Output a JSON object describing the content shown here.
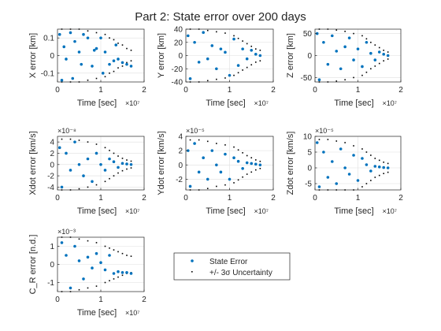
{
  "chart_data": {
    "type": "scatter",
    "title": "Part 2: State error over 200 days",
    "legend": {
      "entries": [
        "State Error",
        "+/- 3σ Uncertainty"
      ],
      "placement": "bottom-center"
    },
    "colors": {
      "state_error": "#0072BD",
      "uncertainty": "#000000",
      "grid": "#DFDFDF",
      "axis": "#262626"
    },
    "subplots": [
      {
        "ylabel": "X error [km]",
        "xlabel": "Time [sec]",
        "x_exponent": "×10⁷",
        "y_exponent": "",
        "xlim": [
          0,
          2
        ],
        "ylim": [
          -0.15,
          0.15
        ],
        "xticks": [
          0,
          1,
          2
        ],
        "xtick_labels": [
          "0",
          "1",
          "2"
        ],
        "yticks": [
          -0.1,
          0,
          0.1
        ],
        "ytick_labels": [
          "-0.1",
          "0",
          "0.1"
        ],
        "series": [
          {
            "name": "State Error",
            "x": [
              0.05,
              0.1,
              0.15,
              0.2,
              0.3,
              0.35,
              0.4,
              0.5,
              0.55,
              0.6,
              0.7,
              0.8,
              0.85,
              0.9,
              1.0,
              1.05,
              1.1,
              1.2,
              1.3,
              1.35,
              1.4,
              1.5,
              1.6,
              1.7
            ],
            "values": [
              0.12,
              -0.14,
              0.05,
              -0.02,
              0.13,
              -0.13,
              0.08,
              0.02,
              -0.05,
              0.12,
              0.1,
              -0.06,
              0.03,
              0.04,
              0.1,
              -0.1,
              0.02,
              -0.05,
              -0.03,
              0.06,
              -0.02,
              -0.04,
              -0.05,
              -0.06
            ]
          },
          {
            "name": "+/- 3σ Uncertainty",
            "x": [
              0.1,
              0.3,
              0.5,
              0.7,
              0.9,
              1.1,
              1.2,
              1.3,
              1.4,
              1.5,
              1.6,
              1.7
            ],
            "values": [
              0.15,
              0.15,
              0.15,
              0.14,
              0.13,
              0.12,
              0.1,
              0.09,
              0.07,
              0.06,
              0.04,
              0.03
            ]
          }
        ]
      },
      {
        "ylabel": "Y error [km]",
        "xlabel": "Time [sec]",
        "x_exponent": "×10⁷",
        "y_exponent": "",
        "xlim": [
          0,
          2
        ],
        "ylim": [
          -40,
          40
        ],
        "xticks": [
          0,
          1,
          2
        ],
        "xtick_labels": [
          "0",
          "1",
          "2"
        ],
        "yticks": [
          -40,
          -20,
          0,
          20,
          40
        ],
        "ytick_labels": [
          "-40",
          "-20",
          "0",
          "20",
          "40"
        ],
        "series": [
          {
            "name": "State Error",
            "x": [
              0.05,
              0.1,
              0.2,
              0.3,
              0.4,
              0.5,
              0.6,
              0.7,
              0.8,
              0.9,
              1.0,
              1.1,
              1.2,
              1.3,
              1.4,
              1.5,
              1.6,
              1.7
            ],
            "values": [
              30,
              -35,
              20,
              -10,
              35,
              -5,
              15,
              -20,
              10,
              5,
              -30,
              25,
              -15,
              10,
              -5,
              8,
              2,
              0
            ]
          },
          {
            "name": "+/- 3σ Uncertainty",
            "x": [
              0.1,
              0.3,
              0.5,
              0.7,
              0.9,
              1.1,
              1.2,
              1.3,
              1.4,
              1.5,
              1.6,
              1.7
            ],
            "values": [
              40,
              40,
              38,
              36,
              34,
              30,
              26,
              22,
              18,
              14,
              10,
              8
            ]
          }
        ]
      },
      {
        "ylabel": "Z error [km]",
        "xlabel": "Time [sec]",
        "x_exponent": "×10⁷",
        "y_exponent": "",
        "xlim": [
          0,
          2
        ],
        "ylim": [
          -60,
          60
        ],
        "xticks": [
          0,
          1,
          2
        ],
        "xtick_labels": [
          "0",
          "1",
          "2"
        ],
        "yticks": [
          -50,
          0,
          50
        ],
        "ytick_labels": [
          "-50",
          "0",
          "50"
        ],
        "series": [
          {
            "name": "State Error",
            "x": [
              0.05,
              0.1,
              0.2,
              0.3,
              0.4,
              0.5,
              0.6,
              0.7,
              0.8,
              0.9,
              1.0,
              1.1,
              1.2,
              1.3,
              1.4,
              1.5,
              1.6,
              1.7
            ],
            "values": [
              50,
              -55,
              30,
              -20,
              45,
              10,
              -30,
              20,
              40,
              -10,
              15,
              -25,
              30,
              5,
              -10,
              8,
              3,
              0
            ]
          },
          {
            "name": "+/- 3σ Uncertainty",
            "x": [
              0.1,
              0.3,
              0.5,
              0.7,
              0.9,
              1.1,
              1.2,
              1.3,
              1.4,
              1.5,
              1.6,
              1.7
            ],
            "values": [
              60,
              60,
              58,
              55,
              50,
              45,
              38,
              30,
              24,
              18,
              12,
              8
            ]
          }
        ]
      },
      {
        "ylabel": "Xdot error [km/s]",
        "xlabel": "Time [sec]",
        "x_exponent": "×10⁷",
        "y_exponent": "×10⁻⁸",
        "xlim": [
          0,
          2
        ],
        "ylim": [
          -4.5,
          5
        ],
        "xticks": [
          0,
          1,
          2
        ],
        "xtick_labels": [
          "0",
          "1",
          "2"
        ],
        "yticks": [
          -4,
          -2,
          0,
          2,
          4
        ],
        "ytick_labels": [
          "-4",
          "-2",
          "0",
          "2",
          "4"
        ],
        "series": [
          {
            "name": "State Error",
            "x": [
              0.05,
              0.1,
              0.2,
              0.3,
              0.4,
              0.5,
              0.6,
              0.7,
              0.8,
              0.9,
              1.0,
              1.1,
              1.2,
              1.3,
              1.4,
              1.5,
              1.6,
              1.7
            ],
            "values": [
              3,
              -4,
              2,
              -1,
              4,
              0,
              -2,
              1,
              -3,
              2,
              0,
              -1,
              1,
              0.5,
              -0.5,
              0.2,
              0.1,
              0
            ]
          },
          {
            "name": "+/- 3σ Uncertainty",
            "x": [
              0.1,
              0.3,
              0.5,
              0.7,
              0.9,
              1.1,
              1.2,
              1.3,
              1.4,
              1.5,
              1.6,
              1.7
            ],
            "values": [
              4.5,
              4.5,
              4.3,
              4,
              3.6,
              3,
              2.5,
              2,
              1.5,
              1.1,
              0.8,
              0.6
            ]
          }
        ]
      },
      {
        "ylabel": "Ydot error [km/s]",
        "xlabel": "Time [sec]",
        "x_exponent": "×10⁷",
        "y_exponent": "×10⁻⁵",
        "xlim": [
          0,
          2
        ],
        "ylim": [
          -3.5,
          4
        ],
        "xticks": [
          0,
          1,
          2
        ],
        "xtick_labels": [
          "0",
          "1",
          "2"
        ],
        "yticks": [
          -2,
          0,
          2,
          4
        ],
        "ytick_labels": [
          "-2",
          "0",
          "2",
          "4"
        ],
        "series": [
          {
            "name": "State Error",
            "x": [
              0.05,
              0.1,
              0.2,
              0.3,
              0.4,
              0.5,
              0.6,
              0.7,
              0.8,
              0.9,
              1.0,
              1.1,
              1.2,
              1.3,
              1.4,
              1.5,
              1.6,
              1.7
            ],
            "values": [
              2,
              -3,
              3,
              -1,
              1,
              -2,
              2,
              0,
              -1,
              1.5,
              -2,
              1,
              0.5,
              -0.5,
              0.3,
              0.2,
              0.1,
              0
            ]
          },
          {
            "name": "+/- 3σ Uncertainty",
            "x": [
              0.1,
              0.3,
              0.5,
              0.7,
              0.9,
              1.1,
              1.2,
              1.3,
              1.4,
              1.5,
              1.6,
              1.7
            ],
            "values": [
              3.5,
              3.5,
              3.3,
              3,
              2.8,
              2.5,
              2.1,
              1.7,
              1.3,
              1,
              0.7,
              0.5
            ]
          }
        ]
      },
      {
        "ylabel": "Zdot error [km/s]",
        "xlabel": "Time [sec]",
        "x_exponent": "×10⁷",
        "y_exponent": "×10⁻⁵",
        "xlim": [
          0,
          2
        ],
        "ylim": [
          -7,
          10
        ],
        "xticks": [
          0,
          1,
          2
        ],
        "xtick_labels": [
          "0",
          "1",
          "2"
        ],
        "yticks": [
          -5,
          0,
          5,
          10
        ],
        "ytick_labels": [
          "-5",
          "0",
          "5",
          "10"
        ],
        "series": [
          {
            "name": "State Error",
            "x": [
              0.05,
              0.1,
              0.2,
              0.3,
              0.4,
              0.5,
              0.6,
              0.7,
              0.8,
              0.9,
              1.0,
              1.1,
              1.2,
              1.3,
              1.4,
              1.5,
              1.6,
              1.7
            ],
            "values": [
              8,
              -6,
              5,
              -3,
              2,
              -5,
              6,
              0,
              -2,
              4,
              -4,
              3,
              1,
              -1,
              0.5,
              0.3,
              0.1,
              0
            ]
          },
          {
            "name": "+/- 3σ Uncertainty",
            "x": [
              0.1,
              0.3,
              0.5,
              0.7,
              0.9,
              1.1,
              1.2,
              1.3,
              1.4,
              1.5,
              1.6,
              1.7
            ],
            "values": [
              9,
              9,
              8.5,
              8,
              7,
              6,
              5,
              4,
              3,
              2.4,
              1.8,
              1.4
            ]
          }
        ]
      },
      {
        "ylabel": "C_R error [n.d.]",
        "xlabel": "Time [sec]",
        "x_exponent": "×10⁷",
        "y_exponent": "×10⁻³",
        "xlim": [
          0,
          2
        ],
        "ylim": [
          -1.5,
          1.5
        ],
        "xticks": [
          0,
          1,
          2
        ],
        "xtick_labels": [
          "0",
          "1",
          "2"
        ],
        "yticks": [
          -1,
          0,
          1
        ],
        "ytick_labels": [
          "-1",
          "0",
          "1"
        ],
        "series": [
          {
            "name": "State Error",
            "x": [
              0.1,
              0.2,
              0.3,
              0.4,
              0.5,
              0.6,
              0.7,
              0.8,
              0.9,
              1.0,
              1.1,
              1.2,
              1.3,
              1.4,
              1.5,
              1.6,
              1.7
            ],
            "values": [
              1.2,
              0.5,
              -1.3,
              1,
              0.2,
              -0.8,
              0.4,
              -0.2,
              0.6,
              0.1,
              -0.3,
              0.5,
              -0.5,
              -0.4,
              -0.45,
              -0.45,
              -0.5
            ]
          },
          {
            "name": "+/- 3σ Uncertainty",
            "x": [
              0.1,
              0.3,
              0.5,
              0.7,
              0.9,
              1.1,
              1.2,
              1.3,
              1.4,
              1.5,
              1.6,
              1.7
            ],
            "values": [
              1.5,
              1.5,
              1.4,
              1.3,
              1.2,
              1,
              0.9,
              0.8,
              0.7,
              0.6,
              0.5,
              0.45
            ]
          }
        ]
      }
    ]
  }
}
